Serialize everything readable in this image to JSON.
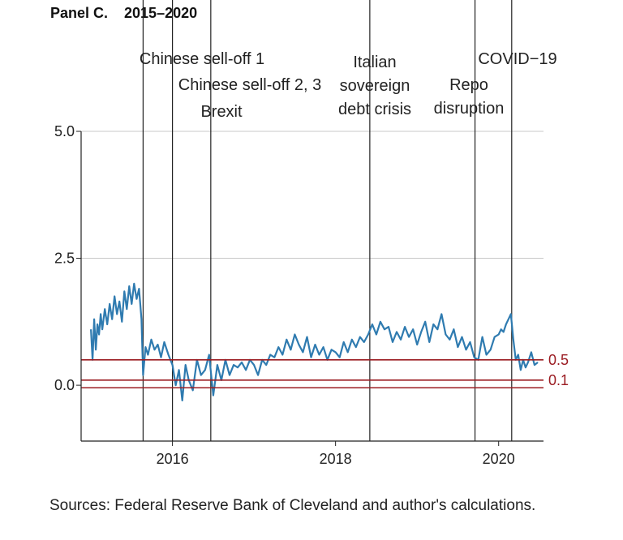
{
  "panel_title": "Panel C.    2015–2020",
  "source_note": "Sources: Federal Reserve Bank of Cleveland and author's calculations.",
  "colors": {
    "series": "#2f7bb0",
    "threshold": "#9b1c22",
    "event_line": "#222222",
    "grid": "#c8c8c8",
    "axis": "#222222"
  },
  "chart_data": {
    "type": "line",
    "title": "",
    "xlabel": "",
    "ylabel": "",
    "xlim": [
      2014.88,
      2020.55
    ],
    "ylim": [
      -1.1,
      5.0
    ],
    "grid": "horizontal",
    "x_ticks": [
      {
        "value": 2016,
        "label": "2016"
      },
      {
        "value": 2018,
        "label": "2018"
      },
      {
        "value": 2020,
        "label": "2020"
      }
    ],
    "y_ticks": [
      {
        "value": 0.0,
        "label": "0.0"
      },
      {
        "value": 2.5,
        "label": "2.5"
      },
      {
        "value": 5.0,
        "label": "5.0"
      }
    ],
    "thresholds": [
      {
        "value": 0.5,
        "label": "0.5"
      },
      {
        "value": 0.1,
        "label": "0.1"
      },
      {
        "value": -0.05,
        "label": ""
      }
    ],
    "events": [
      {
        "x": 2015.64,
        "lines": [
          "Chinese sell-off 1"
        ]
      },
      {
        "x": 2016.0,
        "lines": [
          "Chinese sell-off 2, 3"
        ]
      },
      {
        "x": 2016.47,
        "lines": [
          "Brexit"
        ]
      },
      {
        "x": 2018.42,
        "lines": [
          "Italian",
          "sovereign",
          "debt crisis"
        ]
      },
      {
        "x": 2019.71,
        "lines": [
          "Repo",
          "disruption"
        ]
      },
      {
        "x": 2020.16,
        "lines": [
          "COVID−19"
        ]
      }
    ],
    "series": [
      {
        "x": [
          2015.0,
          2015.02,
          2015.04,
          2015.06,
          2015.08,
          2015.1,
          2015.12,
          2015.14,
          2015.17,
          2015.2,
          2015.23,
          2015.26,
          2015.29,
          2015.32,
          2015.35,
          2015.38,
          2015.41,
          2015.44,
          2015.47,
          2015.5,
          2015.53,
          2015.56,
          2015.59,
          2015.62,
          2015.64,
          2015.67,
          2015.7,
          2015.74,
          2015.78,
          2015.82,
          2015.86,
          2015.9,
          2015.95,
          2016.0,
          2016.04,
          2016.08,
          2016.12,
          2016.16,
          2016.2,
          2016.25,
          2016.3,
          2016.35,
          2016.4,
          2016.45,
          2016.5,
          2016.55,
          2016.6,
          2016.65,
          2016.7,
          2016.75,
          2016.8,
          2016.85,
          2016.9,
          2016.95,
          2017.0,
          2017.05,
          2017.1,
          2017.15,
          2017.2,
          2017.25,
          2017.3,
          2017.35,
          2017.4,
          2017.45,
          2017.5,
          2017.55,
          2017.6,
          2017.65,
          2017.7,
          2017.75,
          2017.8,
          2017.85,
          2017.9,
          2017.95,
          2018.0,
          2018.05,
          2018.1,
          2018.15,
          2018.2,
          2018.25,
          2018.3,
          2018.35,
          2018.4,
          2018.45,
          2018.5,
          2018.55,
          2018.6,
          2018.65,
          2018.7,
          2018.75,
          2018.8,
          2018.85,
          2018.9,
          2018.95,
          2019.0,
          2019.05,
          2019.1,
          2019.15,
          2019.2,
          2019.25,
          2019.3,
          2019.35,
          2019.4,
          2019.45,
          2019.5,
          2019.55,
          2019.6,
          2019.65,
          2019.7,
          2019.75,
          2019.8,
          2019.85,
          2019.9,
          2019.95,
          2020.0,
          2020.03,
          2020.06,
          2020.09,
          2020.12,
          2020.15,
          2020.18,
          2020.21,
          2020.24,
          2020.27,
          2020.3,
          2020.33,
          2020.36,
          2020.4,
          2020.44,
          2020.48
        ],
        "values": [
          1.1,
          0.5,
          1.3,
          0.7,
          1.2,
          1.0,
          1.4,
          1.1,
          1.5,
          1.2,
          1.6,
          1.3,
          1.75,
          1.4,
          1.65,
          1.25,
          1.85,
          1.5,
          1.95,
          1.6,
          2.0,
          1.7,
          1.9,
          1.3,
          0.2,
          0.75,
          0.6,
          0.9,
          0.7,
          0.8,
          0.55,
          0.85,
          0.6,
          0.4,
          0.0,
          0.3,
          -0.3,
          0.4,
          0.1,
          -0.1,
          0.5,
          0.2,
          0.3,
          0.6,
          -0.2,
          0.4,
          0.1,
          0.5,
          0.2,
          0.4,
          0.35,
          0.45,
          0.3,
          0.5,
          0.4,
          0.2,
          0.5,
          0.4,
          0.6,
          0.55,
          0.75,
          0.6,
          0.9,
          0.7,
          1.0,
          0.8,
          0.65,
          0.95,
          0.55,
          0.8,
          0.6,
          0.75,
          0.5,
          0.7,
          0.65,
          0.55,
          0.85,
          0.65,
          0.9,
          0.75,
          0.95,
          0.85,
          1.0,
          1.2,
          1.0,
          1.25,
          1.1,
          1.15,
          0.85,
          1.05,
          0.9,
          1.15,
          0.95,
          1.1,
          0.8,
          1.05,
          1.25,
          0.85,
          1.2,
          1.1,
          1.4,
          1.0,
          0.9,
          1.1,
          0.75,
          0.95,
          0.7,
          0.85,
          0.55,
          0.5,
          0.95,
          0.6,
          0.7,
          0.95,
          1.0,
          1.1,
          1.05,
          1.2,
          1.3,
          1.4,
          0.9,
          0.5,
          0.6,
          0.3,
          0.5,
          0.35,
          0.45,
          0.65,
          0.4,
          0.45
        ]
      }
    ]
  }
}
